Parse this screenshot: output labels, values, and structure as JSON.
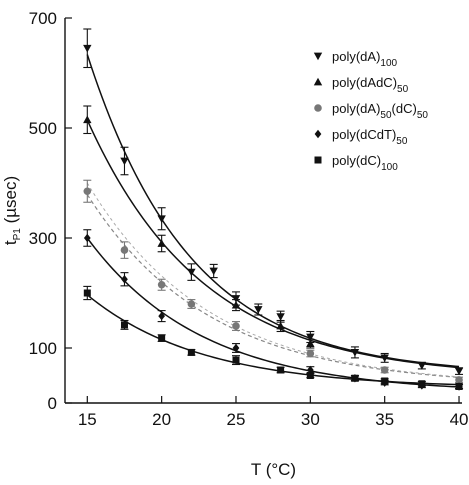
{
  "chart_data": {
    "type": "scatter",
    "xlabel": "T (°C)",
    "ylabel_main": "t",
    "ylabel_sub": "P1",
    "ylabel_unit": " (µsec)",
    "xlim": [
      13.5,
      40.2
    ],
    "ylim": [
      0,
      700
    ],
    "xticks": [
      15,
      20,
      25,
      30,
      35,
      40
    ],
    "yticks": [
      0,
      100,
      300,
      500,
      700
    ],
    "yticks_labeled": [
      100,
      300,
      500,
      700
    ],
    "legend_position": "top-right",
    "series": [
      {
        "label_main": "poly(dA)",
        "label_sub": "100",
        "marker": "triangle-down",
        "color": "#111111",
        "x": [
          15,
          17.5,
          20,
          22,
          23.5,
          25,
          26.5,
          28,
          30,
          33,
          35,
          37.5,
          40
        ],
        "y": [
          645,
          440,
          335,
          238,
          240,
          190,
          170,
          157,
          120,
          92,
          82,
          68,
          58
        ],
        "yerr": [
          35,
          25,
          20,
          15,
          12,
          12,
          10,
          10,
          10,
          10,
          8,
          6,
          6
        ],
        "fit": true,
        "fit_style": "solid"
      },
      {
        "label_main": "poly(dAdC)",
        "label_sub": "50",
        "marker": "triangle-up",
        "color": "#111111",
        "x": [
          15,
          20,
          25,
          28,
          30
        ],
        "y": [
          515,
          290,
          178,
          140,
          108
        ],
        "yerr": [
          25,
          15,
          10,
          10,
          8
        ],
        "fit": true,
        "fit_style": "solid"
      },
      {
        "label_main": "poly(dA)",
        "label_sub": "50",
        "label_mid": "(dC)",
        "label_sub2": "50",
        "marker": "circle",
        "color": "#777777",
        "x": [
          15,
          17.5,
          20,
          22,
          25,
          30,
          35,
          40
        ],
        "y": [
          385,
          278,
          215,
          180,
          140,
          90,
          60,
          42
        ],
        "yerr": [
          20,
          15,
          10,
          8,
          8,
          6,
          5,
          5
        ],
        "fit": true,
        "fit_style": "dashed"
      },
      {
        "label_main": "poly(dCdT)",
        "label_sub": "50",
        "marker": "diamond",
        "color": "#111111",
        "x": [
          15,
          17.5,
          20,
          25,
          30,
          33,
          35,
          37.5,
          40
        ],
        "y": [
          300,
          225,
          158,
          100,
          60,
          45,
          37,
          32,
          30
        ],
        "yerr": [
          15,
          12,
          10,
          8,
          6,
          5,
          4,
          4,
          4
        ],
        "fit": true,
        "fit_style": "solid"
      },
      {
        "label_main": "poly(dC)",
        "label_sub": "100",
        "marker": "square",
        "color": "#111111",
        "x": [
          15,
          17.5,
          20,
          22,
          25,
          28,
          30,
          33,
          35,
          37.5,
          40
        ],
        "y": [
          200,
          142,
          118,
          92,
          78,
          60,
          50,
          45,
          40,
          35,
          30
        ],
        "yerr": [
          12,
          8,
          6,
          5,
          8,
          5,
          4,
          4,
          4,
          4,
          4
        ],
        "fit": true,
        "fit_style": "solid"
      }
    ]
  }
}
